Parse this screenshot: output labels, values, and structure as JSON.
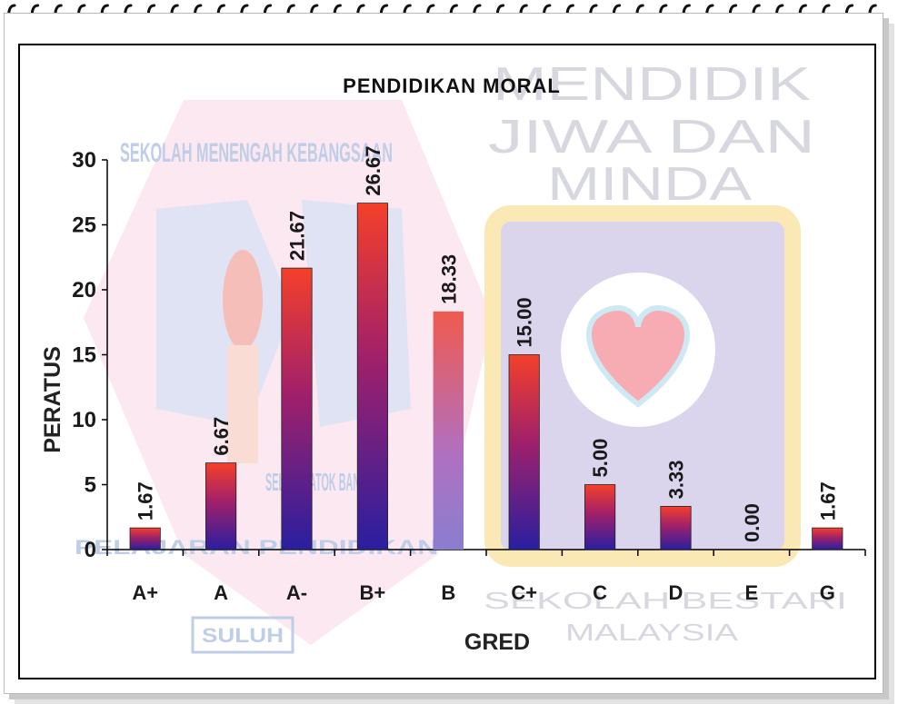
{
  "chart_data": {
    "type": "bar",
    "title": "PENDIDIKAN  MORAL",
    "xlabel": "GRED",
    "ylabel": "PERATUS",
    "categories": [
      "A+",
      "A",
      "A-",
      "B+",
      "B",
      "C+",
      "C",
      "D",
      "E",
      "G"
    ],
    "values": [
      1.67,
      6.67,
      21.67,
      26.67,
      18.33,
      15.0,
      5.0,
      3.33,
      0.0,
      1.67
    ],
    "value_labels": [
      "1.67",
      "6.67",
      "21.67",
      "26.67",
      "18.33",
      "15.00",
      "5.00",
      "3.33",
      "0.00",
      "1.67"
    ],
    "yticks": [
      "0",
      "5",
      "10",
      "15",
      "20",
      "25",
      "30"
    ],
    "ylim": [
      0,
      30
    ],
    "grid": false,
    "legend": "none",
    "colors": {
      "bar_top": "#f0302a",
      "bar_bottom": "#2a1fa0",
      "axis": "#000000"
    }
  },
  "watermark": {
    "school_name": "SEKOLAH MENENGAH KEBANGSAAN",
    "school_place": "SELOK DATOK BANTING",
    "school_ring": "PELAJARAN PENDIDIKAN",
    "school_motto": "SULUH",
    "slogan_lines": [
      "MENDIDIK",
      "JIWA DAN",
      "MINDA"
    ],
    "program_lines": [
      "SEKOLAH BESTARI",
      "MALAYSIA"
    ]
  }
}
